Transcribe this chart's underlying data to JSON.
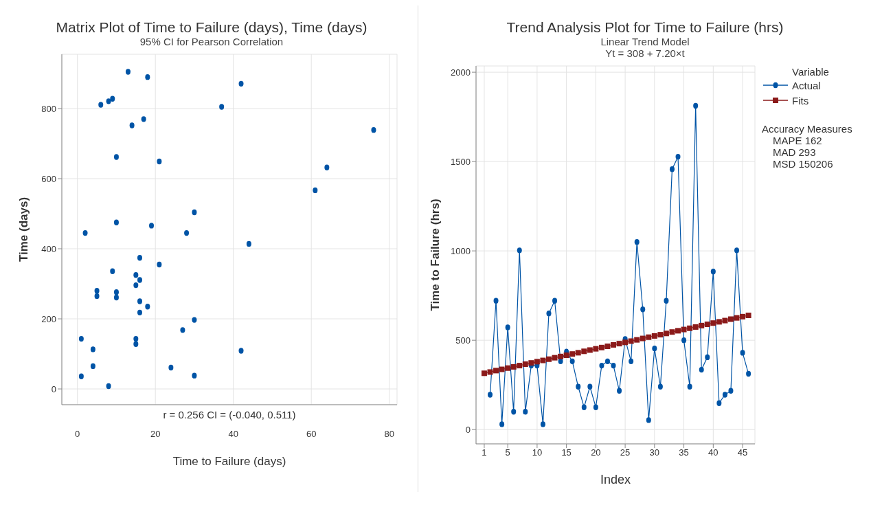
{
  "chart_data": [
    {
      "type": "scatter",
      "title": "Matrix Plot of Time to Failure (days), Time (days)",
      "subtitle": "95% CI for Pearson Correlation",
      "xlabel": "Time to Failure (days)",
      "ylabel": "Time (days)",
      "x": [
        1,
        1,
        2,
        4,
        4,
        5,
        5,
        8,
        6,
        8,
        9,
        9,
        10,
        10,
        10,
        10,
        13,
        14,
        15,
        15,
        15,
        15,
        16,
        16,
        16,
        16,
        17,
        18,
        18,
        19,
        21,
        21,
        24,
        27,
        28,
        30,
        30,
        30,
        37,
        42,
        42,
        44,
        61,
        64,
        76
      ],
      "values": [
        143,
        36,
        445,
        113,
        65,
        280,
        265,
        8,
        811,
        821,
        828,
        336,
        662,
        475,
        276,
        261,
        905,
        752,
        325,
        296,
        143,
        128,
        374,
        311,
        250,
        218,
        770,
        890,
        235,
        466,
        649,
        355,
        61,
        168,
        445,
        197,
        504,
        38,
        805,
        871,
        109,
        414,
        567,
        632,
        739
      ],
      "color": "#0054a6",
      "marker": "circle",
      "xlim": [
        -4,
        82
      ],
      "ylim": [
        -45,
        955
      ],
      "xticks": [
        0,
        20,
        40,
        60,
        80
      ],
      "yticks": [
        0,
        200,
        400,
        600,
        800
      ],
      "grid": true,
      "legend": false,
      "annotations": [
        "r = 0.256  CI = (-0.040, 0.511)"
      ]
    },
    {
      "type": "line",
      "title": "Trend Analysis Plot for Time to Failure (hrs)",
      "subtitle": "Linear Trend Model\nYt = 308 + 7.20×t",
      "xlabel": "Index",
      "ylabel": "Time to Failure (hrs)",
      "x": [
        1,
        2,
        3,
        4,
        5,
        6,
        7,
        8,
        9,
        10,
        11,
        12,
        13,
        14,
        15,
        16,
        17,
        18,
        19,
        20,
        21,
        22,
        23,
        24,
        25,
        26,
        27,
        28,
        29,
        30,
        31,
        32,
        33,
        34,
        35,
        36,
        37,
        38,
        39,
        40,
        41,
        42,
        43,
        44,
        45,
        46
      ],
      "series": [
        {
          "name": "Actual",
          "color": "#0054a6",
          "marker": "circle",
          "values": [
            null,
            195,
            721,
            30,
            572,
            100,
            1003,
            100,
            358,
            358,
            30,
            650,
            721,
            382,
            436,
            382,
            240,
            125,
            240,
            125,
            358,
            382,
            358,
            217,
            507,
            382,
            1050,
            673,
            53,
            454,
            240,
            721,
            1457,
            1527,
            500,
            240,
            1812,
            335,
            405,
            884,
            148,
            195,
            217,
            1003,
            430,
            312
          ]
        },
        {
          "name": "Fits",
          "color": "#8b1a1a",
          "marker": "square",
          "values": [
            315,
            322,
            330,
            337,
            344,
            351,
            358,
            366,
            373,
            380,
            387,
            394,
            402,
            409,
            416,
            423,
            430,
            438,
            445,
            452,
            459,
            466,
            474,
            481,
            488,
            495,
            502,
            510,
            517,
            524,
            531,
            538,
            546,
            553,
            560,
            567,
            574,
            582,
            589,
            596,
            603,
            610,
            618,
            625,
            632,
            639
          ]
        }
      ],
      "legend": "right",
      "legend_title": "Variable",
      "line_style": "solid",
      "xlim": [
        -0.4,
        47.1
      ],
      "ylim": [
        -80,
        2035
      ],
      "xticks": [
        1,
        5,
        10,
        15,
        20,
        25,
        30,
        35,
        40,
        45
      ],
      "yticks": [
        0,
        500,
        1000,
        1500,
        2000
      ],
      "grid": true,
      "annotations": [
        "Accuracy Measures",
        "MAPE 162",
        "MAD 293",
        "MSD 150206"
      ]
    }
  ]
}
